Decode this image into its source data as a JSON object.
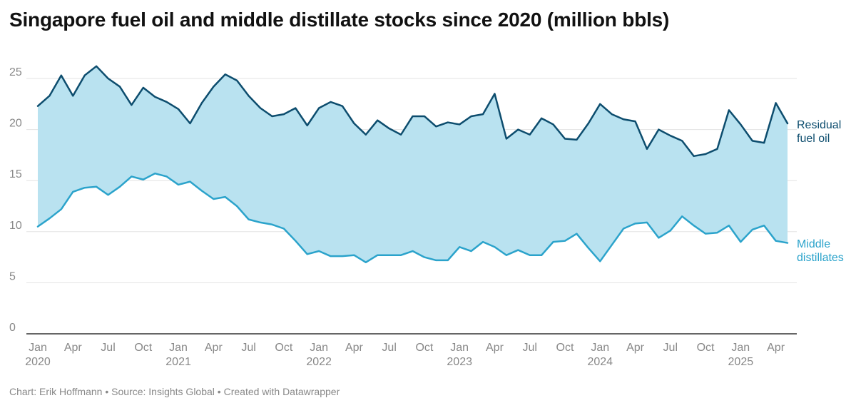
{
  "title": "Singapore fuel oil and middle distillate stocks since 2020 (million bbls)",
  "footer": {
    "chart": "Chart: Erik Hoffmann",
    "separator": " • ",
    "source": "Source: Insights Global",
    "created": "Created with Datawrapper"
  },
  "chart_data": {
    "type": "line",
    "title": "Singapore fuel oil and middle distillate stocks since 2020 (million bbls)",
    "xlabel": "",
    "ylabel": "",
    "ylim": [
      0,
      27
    ],
    "yticks": [
      0,
      5,
      10,
      15,
      20,
      25
    ],
    "grid": true,
    "area_between_series": true,
    "x_start": "2020-01",
    "x": [
      "2020-01",
      "2020-02",
      "2020-03",
      "2020-04",
      "2020-05",
      "2020-06",
      "2020-07",
      "2020-08",
      "2020-09",
      "2020-10",
      "2020-11",
      "2020-12",
      "2021-01",
      "2021-02",
      "2021-03",
      "2021-04",
      "2021-05",
      "2021-06",
      "2021-07",
      "2021-08",
      "2021-09",
      "2021-10",
      "2021-11",
      "2021-12",
      "2022-01",
      "2022-02",
      "2022-03",
      "2022-04",
      "2022-05",
      "2022-06",
      "2022-07",
      "2022-08",
      "2022-09",
      "2022-10",
      "2022-11",
      "2022-12",
      "2023-01",
      "2023-02",
      "2023-03",
      "2023-04",
      "2023-05",
      "2023-06",
      "2023-07",
      "2023-08",
      "2023-09",
      "2023-10",
      "2023-11",
      "2023-12",
      "2024-01",
      "2024-02",
      "2024-03",
      "2024-04",
      "2024-05",
      "2024-06",
      "2024-07",
      "2024-08",
      "2024-09",
      "2024-10",
      "2024-11",
      "2024-12",
      "2025-01",
      "2025-02",
      "2025-03",
      "2025-04",
      "2025-05"
    ],
    "x_tick_labels": [
      {
        "label": "Jan",
        "sub": "2020",
        "month": 0
      },
      {
        "label": "Apr",
        "sub": "",
        "month": 3
      },
      {
        "label": "Jul",
        "sub": "",
        "month": 6
      },
      {
        "label": "Oct",
        "sub": "",
        "month": 9
      },
      {
        "label": "Jan",
        "sub": "2021",
        "month": 12
      },
      {
        "label": "Apr",
        "sub": "",
        "month": 15
      },
      {
        "label": "Jul",
        "sub": "",
        "month": 18
      },
      {
        "label": "Oct",
        "sub": "",
        "month": 21
      },
      {
        "label": "Jan",
        "sub": "2022",
        "month": 24
      },
      {
        "label": "Apr",
        "sub": "",
        "month": 27
      },
      {
        "label": "Jul",
        "sub": "",
        "month": 30
      },
      {
        "label": "Oct",
        "sub": "",
        "month": 33
      },
      {
        "label": "Jan",
        "sub": "2023",
        "month": 36
      },
      {
        "label": "Apr",
        "sub": "",
        "month": 39
      },
      {
        "label": "Jul",
        "sub": "",
        "month": 42
      },
      {
        "label": "Oct",
        "sub": "",
        "month": 45
      },
      {
        "label": "Jan",
        "sub": "2024",
        "month": 48
      },
      {
        "label": "Apr",
        "sub": "",
        "month": 51
      },
      {
        "label": "Jul",
        "sub": "",
        "month": 54
      },
      {
        "label": "Oct",
        "sub": "",
        "month": 57
      },
      {
        "label": "Jan",
        "sub": "2025",
        "month": 60
      },
      {
        "label": "Apr",
        "sub": "",
        "month": 63
      }
    ],
    "series": [
      {
        "name": "Residual fuel oil",
        "label_lines": [
          "Residual",
          "fuel oil"
        ],
        "color": "#0d4d6e",
        "values": [
          22.3,
          23.3,
          25.3,
          23.3,
          25.3,
          26.2,
          25.0,
          24.2,
          22.4,
          24.1,
          23.2,
          22.7,
          22.0,
          20.6,
          22.6,
          24.2,
          25.4,
          24.8,
          23.3,
          22.1,
          21.3,
          21.5,
          22.1,
          20.4,
          22.1,
          22.7,
          22.3,
          20.6,
          19.5,
          20.9,
          20.1,
          19.5,
          21.3,
          21.3,
          20.3,
          20.7,
          20.5,
          21.3,
          21.5,
          23.5,
          19.1,
          20.0,
          19.5,
          21.1,
          20.5,
          19.1,
          19.0,
          20.6,
          22.5,
          21.5,
          21.0,
          20.8,
          18.1,
          20.0,
          19.4,
          18.9,
          17.4,
          17.6,
          18.1,
          21.9,
          20.5,
          18.9,
          18.7,
          22.6,
          20.6
        ]
      },
      {
        "name": "Middle distillates",
        "label_lines": [
          "Middle",
          "distillates"
        ],
        "color": "#2ba3cb",
        "values": [
          10.5,
          11.3,
          12.2,
          13.9,
          14.3,
          14.4,
          13.6,
          14.4,
          15.4,
          15.1,
          15.7,
          15.4,
          14.6,
          14.9,
          14.0,
          13.2,
          13.4,
          12.5,
          11.2,
          10.9,
          10.7,
          10.3,
          9.1,
          7.8,
          8.1,
          7.6,
          7.6,
          7.7,
          7.0,
          7.7,
          7.7,
          7.7,
          8.1,
          7.5,
          7.2,
          7.2,
          8.5,
          8.1,
          9.0,
          8.5,
          7.7,
          8.2,
          7.7,
          7.7,
          9.0,
          9.1,
          9.8,
          8.4,
          7.1,
          8.7,
          10.3,
          10.8,
          10.9,
          9.4,
          10.1,
          11.5,
          10.6,
          9.8,
          9.9,
          10.6,
          9.0,
          10.2,
          10.6,
          9.1,
          8.9
        ]
      }
    ],
    "fill_color": "#b9e2f0"
  }
}
